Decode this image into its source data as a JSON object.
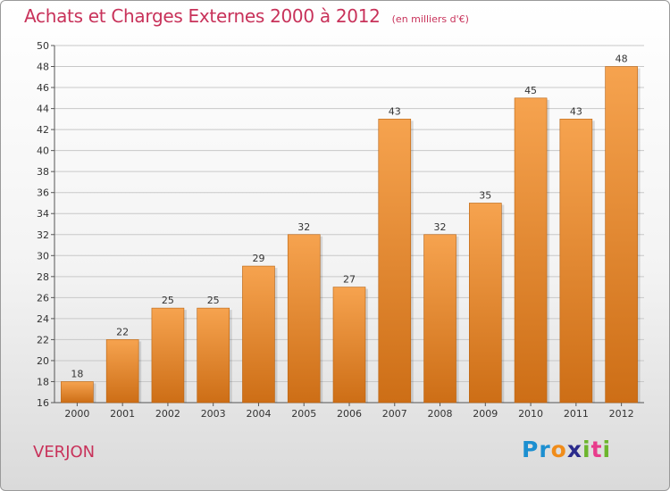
{
  "header": {
    "title": "Achats et Charges Externes 2000 à 2012",
    "subtitle": "(en milliers d'€)"
  },
  "commune": "VERJON",
  "logo": {
    "text": "Proxiti",
    "letters": [
      {
        "char": "P",
        "color": "#1c8fd0"
      },
      {
        "char": "r",
        "color": "#1c8fd0"
      },
      {
        "char": "o",
        "color": "#f08c1a"
      },
      {
        "char": "x",
        "color": "#2b2b8c"
      },
      {
        "char": "i",
        "color": "#6cb52d"
      },
      {
        "char": "t",
        "color": "#e83c8c"
      },
      {
        "char": "i",
        "color": "#6cb52d"
      }
    ]
  },
  "colors": {
    "bar_light": "#f6a34f",
    "bar_dark": "#cd6e16",
    "accent": "#c8325a",
    "grid": "#c8c8c8"
  },
  "chart_data": {
    "type": "bar",
    "title": "Achats et Charges Externes 2000 à 2012",
    "subtitle": "(en milliers d'€)",
    "xlabel": "",
    "ylabel": "",
    "categories": [
      "2000",
      "2001",
      "2002",
      "2003",
      "2004",
      "2005",
      "2006",
      "2007",
      "2008",
      "2009",
      "2010",
      "2011",
      "2012"
    ],
    "values": [
      18,
      22,
      25,
      25,
      29,
      32,
      27,
      43,
      32,
      35,
      45,
      43,
      48
    ],
    "ylim": [
      16,
      50
    ],
    "yticks": [
      16,
      18,
      20,
      22,
      24,
      26,
      28,
      30,
      32,
      34,
      36,
      38,
      40,
      42,
      44,
      46,
      48,
      50
    ],
    "grid": true,
    "data_labels": true
  }
}
